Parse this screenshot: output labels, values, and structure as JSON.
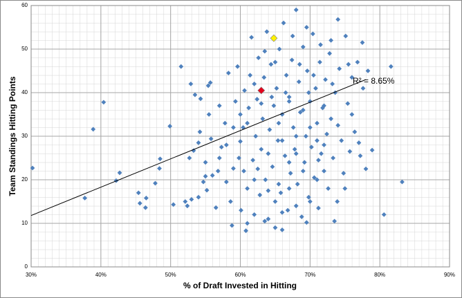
{
  "chart_data": {
    "type": "scatter",
    "x_label": "% of Draft Invested in Hitting",
    "y_label": "Team Standings Hitting Points",
    "xlim": [
      30,
      90
    ],
    "xticks": [
      {
        "value": 30,
        "label": "30%"
      },
      {
        "value": 40,
        "label": "40%"
      },
      {
        "value": 50,
        "label": "50%"
      },
      {
        "value": 60,
        "label": "60%"
      },
      {
        "value": 70,
        "label": "70%"
      },
      {
        "value": 80,
        "label": "80%"
      },
      {
        "value": 90,
        "label": "90%"
      }
    ],
    "ylim": [
      0,
      60
    ],
    "yticks": [
      0,
      10,
      20,
      30,
      40,
      50,
      60
    ],
    "grid": true,
    "annotation": "R² = 8.65%",
    "trendline": {
      "x": [
        30,
        78
      ],
      "y": [
        11.8,
        43
      ],
      "color": "#000000"
    },
    "series": [
      {
        "color": "#4f81bd",
        "x": [
          30.2,
          37.7,
          38.9,
          40.4,
          42.2,
          42.7,
          45.4,
          45.6,
          46.4,
          46.5,
          47.8,
          48.4,
          48.5,
          49.9,
          50.4,
          51.5,
          52.1,
          52.4,
          52.7,
          52.9,
          53.3,
          53.5,
          54,
          54.2,
          54.3,
          54.7,
          55,
          55.2,
          55.4,
          55.5,
          55.7,
          55.8,
          56.5,
          56.8,
          57,
          57.3,
          57.8,
          58,
          58.3,
          58.6,
          58.8,
          59,
          59.3,
          59.6,
          59.8,
          60,
          60.1,
          60.4,
          60.6,
          60.8,
          61,
          61.2,
          61.4,
          61.6,
          61.8,
          62,
          62.2,
          62.4,
          62.6,
          62.8,
          63,
          63.2,
          63.4,
          63.6,
          63.8,
          64,
          64.2,
          64.4,
          64.6,
          64.8,
          65,
          65.2,
          65.4,
          65.6,
          65.8,
          66,
          66.2,
          66.4,
          66.6,
          66.8,
          67,
          67.2,
          67.4,
          67.6,
          67.8,
          68,
          68.2,
          68.4,
          68.6,
          68.8,
          69,
          69.2,
          69.4,
          69.6,
          69.8,
          70,
          70.2,
          70.4,
          70.6,
          70.8,
          71,
          71.2,
          71.4,
          71.6,
          71.8,
          72,
          72.2,
          72.4,
          72.6,
          72.8,
          73,
          73.3,
          73.6,
          73.9,
          74.2,
          74.5,
          74.8,
          75.1,
          75.4,
          75.7,
          76,
          76.4,
          76.8,
          77.2,
          77.6,
          78,
          78.3,
          78.9,
          80.6,
          81.6,
          83.2,
          74,
          73.5,
          69.5,
          66,
          63.5,
          61,
          60.5,
          62,
          64,
          65.5,
          67,
          68,
          69,
          70,
          71,
          72,
          66.5,
          64.5,
          63,
          62,
          61,
          60,
          59,
          58,
          57,
          56,
          55,
          54,
          53,
          67.5,
          69.5,
          71.5,
          73,
          65,
          63.5,
          68.5,
          70.5,
          66,
          67,
          68,
          69,
          70,
          71,
          72,
          75,
          76,
          77,
          74,
          62.5,
          64,
          65,
          66,
          67,
          68,
          65.5,
          69.8,
          71.2,
          73.2,
          75.5,
          77.5
        ],
        "values": [
          22.7,
          15.8,
          31.6,
          37.8,
          19.8,
          21.6,
          17,
          14.6,
          13.6,
          15.8,
          19.2,
          22.6,
          24.8,
          32.3,
          14.3,
          46,
          15,
          14,
          25,
          42,
          26.7,
          39.5,
          28.5,
          31,
          38.6,
          19.5,
          24,
          17.6,
          41.6,
          35,
          42.3,
          29.4,
          13.6,
          22,
          37,
          27.5,
          33,
          19.5,
          44.5,
          15,
          9.5,
          22.6,
          38,
          46,
          25,
          28.8,
          13,
          32,
          40.5,
          8.3,
          18,
          36.5,
          44,
          52.7,
          24.5,
          12,
          30,
          38.5,
          48,
          16.5,
          27,
          34,
          43.5,
          20,
          54,
          11,
          31.5,
          46.5,
          23,
          37,
          9,
          41,
          29,
          50,
          17,
          35,
          56,
          25.5,
          44,
          13,
          39,
          21.5,
          47.5,
          32,
          27,
          59,
          19,
          42.5,
          35.5,
          11.5,
          50.5,
          24,
          30,
          45,
          16,
          38,
          27.5,
          53.5,
          20.5,
          41,
          33,
          13.5,
          47,
          26,
          36.5,
          22,
          43,
          30.5,
          18,
          49,
          34,
          25,
          40,
          15,
          45.5,
          29,
          21.5,
          53,
          37.5,
          26.5,
          43.5,
          31,
          47,
          25.5,
          41,
          22.5,
          45,
          26.8,
          12,
          46,
          19.5,
          56.8,
          10.5,
          10.2,
          8.5,
          10.5,
          10,
          22,
          20,
          26,
          33,
          38,
          30,
          22,
          15,
          29,
          37,
          40,
          39,
          37.5,
          42,
          33,
          35,
          32,
          28,
          25,
          21,
          20.8,
          16,
          15.5,
          53,
          55,
          51,
          52,
          47,
          49.5,
          46.5,
          44,
          29,
          18,
          14,
          36,
          32,
          20,
          28,
          18,
          35,
          28.5,
          32.5,
          22.5,
          17.5,
          15,
          12.5,
          24,
          26,
          19,
          40,
          24.5,
          42,
          46.5,
          51.5
        ]
      },
      {
        "color": "#e3001b",
        "x": [
          63
        ],
        "values": [
          40.5
        ]
      },
      {
        "color": "#fff200",
        "x": [
          64.8
        ],
        "values": [
          52.5
        ]
      }
    ]
  }
}
